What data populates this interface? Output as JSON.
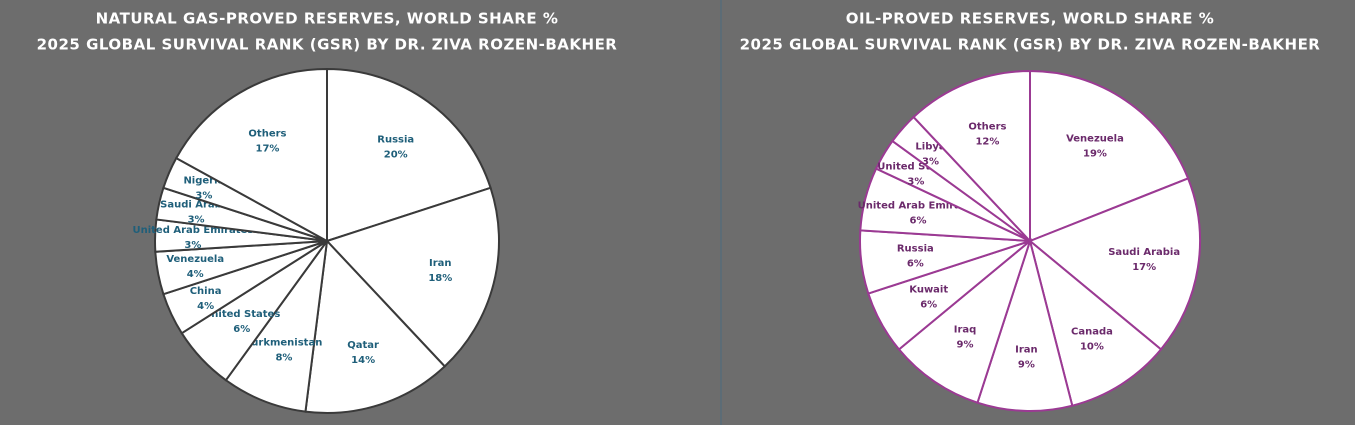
{
  "chart_data": [
    {
      "type": "pie",
      "title": "NATURAL GAS-PROVED RESERVES, WORLD SHARE %",
      "subtitle": "2025 GLOBAL SURVIVAL RANK (GSR) BY DR. ZIVA ROZEN-BAKHER",
      "categories": [
        "Russia",
        "Iran",
        "Qatar",
        "Turkmenistan",
        "United States",
        "China",
        "Venezuela",
        "United Arab Emirates",
        "Saudi Arabia",
        "Nigeria",
        "Others"
      ],
      "values": [
        20,
        18,
        14,
        8,
        6,
        4,
        4,
        3,
        3,
        3,
        17
      ],
      "value_labels": [
        "20%",
        "18%",
        "14%",
        "8%",
        "6%",
        "4%",
        "4%",
        "3%",
        "3%",
        "3%",
        "17%"
      ],
      "color": "#ffffff",
      "edge_color": "#3a3a3a",
      "label_color": "#1f5f7a"
    },
    {
      "type": "pie",
      "title": "OIL-PROVED RESERVES, WORLD SHARE %",
      "subtitle": "2025 GLOBAL SURVIVAL RANK (GSR) BY DR. ZIVA ROZEN-BAKHER",
      "categories": [
        "Venezuela",
        "Saudi Arabia",
        "Canada",
        "Iran",
        "Iraq",
        "Kuwait",
        "Russia",
        "United Arab Emirates",
        "United States",
        "Libya",
        "Others"
      ],
      "values": [
        19,
        17,
        10,
        9,
        9,
        6,
        6,
        6,
        3,
        3,
        12
      ],
      "value_labels": [
        "19%",
        "17%",
        "10%",
        "9%",
        "9%",
        "6%",
        "6%",
        "6%",
        "3%",
        "3%",
        "12%"
      ],
      "color": "#ffffff",
      "edge_color": "#9b3a93",
      "label_color": "#6b2a6b"
    }
  ]
}
